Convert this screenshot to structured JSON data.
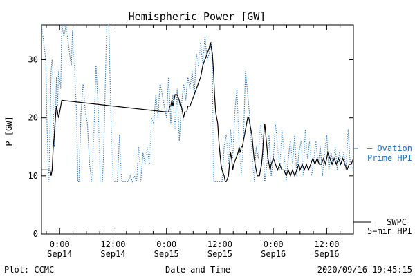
{
  "footer": {
    "left": "Plot: CCMC",
    "right": "2020/09/16 19:45:15"
  },
  "chart_data": {
    "type": "line",
    "title": "Hemispheric Power [GW]",
    "xlabel": "Date and Time",
    "ylabel": "P [GW]",
    "ylim": [
      0,
      36
    ],
    "xlim": [
      -0.17,
      2.75
    ],
    "y_ticks": [
      0,
      10,
      20,
      30
    ],
    "x_ticks": [
      {
        "x": 0.0,
        "top": "0:00",
        "bottom": "Sep14"
      },
      {
        "x": 0.5,
        "top": "12:00",
        "bottom": "Sep14"
      },
      {
        "x": 1.0,
        "top": "0:00",
        "bottom": "Sep15"
      },
      {
        "x": 1.5,
        "top": "12:00",
        "bottom": "Sep15"
      },
      {
        "x": 2.0,
        "top": "0:00",
        "bottom": "Sep16"
      },
      {
        "x": 2.5,
        "top": "12:00",
        "bottom": "Sep16"
      }
    ],
    "grid": false,
    "colors": {
      "swpc": "#000000",
      "ovation": "#1a6fc4"
    },
    "series": [
      {
        "name": "SWPC 5-min HPI",
        "legend_lines": [
          "SWPC",
          "5−min HPI"
        ],
        "style": "solid",
        "points": [
          [
            -0.17,
            11
          ],
          [
            -0.09,
            11
          ],
          [
            -0.08,
            10
          ],
          [
            -0.07,
            11
          ],
          [
            -0.06,
            15
          ],
          [
            -0.05,
            17
          ],
          [
            -0.04,
            20
          ],
          [
            -0.03,
            22
          ],
          [
            -0.02,
            21
          ],
          [
            -0.01,
            20
          ],
          [
            0.0,
            21
          ],
          [
            0.02,
            23
          ],
          [
            1.0,
            21
          ],
          [
            1.02,
            21
          ],
          [
            1.03,
            22
          ],
          [
            1.04,
            22
          ],
          [
            1.05,
            23
          ],
          [
            1.06,
            22
          ],
          [
            1.08,
            24
          ],
          [
            1.1,
            24
          ],
          [
            1.12,
            23
          ],
          [
            1.13,
            22
          ],
          [
            1.14,
            22
          ],
          [
            1.15,
            21
          ],
          [
            1.16,
            20
          ],
          [
            1.17,
            21
          ],
          [
            1.19,
            21
          ],
          [
            1.2,
            22
          ],
          [
            1.22,
            22
          ],
          [
            1.24,
            23
          ],
          [
            1.26,
            24
          ],
          [
            1.28,
            25
          ],
          [
            1.3,
            26
          ],
          [
            1.32,
            27
          ],
          [
            1.34,
            29
          ],
          [
            1.36,
            30
          ],
          [
            1.38,
            31
          ],
          [
            1.4,
            32
          ],
          [
            1.41,
            33
          ],
          [
            1.42,
            32
          ],
          [
            1.43,
            31
          ],
          [
            1.44,
            28
          ],
          [
            1.45,
            24
          ],
          [
            1.46,
            21
          ],
          [
            1.48,
            19
          ],
          [
            1.49,
            16
          ],
          [
            1.5,
            14
          ],
          [
            1.51,
            12
          ],
          [
            1.52,
            11
          ],
          [
            1.54,
            10
          ],
          [
            1.55,
            9
          ],
          [
            1.56,
            9
          ],
          [
            1.58,
            10
          ],
          [
            1.59,
            12
          ],
          [
            1.6,
            14
          ],
          [
            1.61,
            13
          ],
          [
            1.62,
            11
          ],
          [
            1.63,
            12
          ],
          [
            1.65,
            13
          ],
          [
            1.67,
            14
          ],
          [
            1.68,
            15
          ],
          [
            1.69,
            14
          ],
          [
            1.7,
            15
          ],
          [
            1.71,
            15
          ],
          [
            1.72,
            16
          ],
          [
            1.73,
            17
          ],
          [
            1.74,
            18
          ],
          [
            1.75,
            19
          ],
          [
            1.76,
            20
          ],
          [
            1.77,
            20
          ],
          [
            1.78,
            19
          ],
          [
            1.79,
            18
          ],
          [
            1.8,
            17
          ],
          [
            1.81,
            15
          ],
          [
            1.82,
            13
          ],
          [
            1.83,
            12
          ],
          [
            1.84,
            11
          ],
          [
            1.85,
            10
          ],
          [
            1.87,
            10
          ],
          [
            1.88,
            11
          ],
          [
            1.89,
            12
          ],
          [
            1.9,
            14
          ],
          [
            1.91,
            17
          ],
          [
            1.92,
            19
          ],
          [
            1.93,
            17
          ],
          [
            1.94,
            15
          ],
          [
            1.95,
            13
          ],
          [
            1.96,
            12
          ],
          [
            1.97,
            11
          ],
          [
            1.98,
            12
          ],
          [
            2.0,
            13
          ],
          [
            2.02,
            12
          ],
          [
            2.04,
            11
          ],
          [
            2.06,
            12
          ],
          [
            2.08,
            11
          ],
          [
            2.1,
            11
          ],
          [
            2.12,
            10
          ],
          [
            2.14,
            11
          ],
          [
            2.16,
            10
          ],
          [
            2.18,
            11
          ],
          [
            2.2,
            10
          ],
          [
            2.22,
            11
          ],
          [
            2.24,
            12
          ],
          [
            2.25,
            11
          ],
          [
            2.27,
            12
          ],
          [
            2.29,
            11
          ],
          [
            2.31,
            12
          ],
          [
            2.33,
            11
          ],
          [
            2.35,
            12
          ],
          [
            2.37,
            13
          ],
          [
            2.39,
            12
          ],
          [
            2.41,
            13
          ],
          [
            2.43,
            12
          ],
          [
            2.45,
            12
          ],
          [
            2.47,
            13
          ],
          [
            2.49,
            12
          ],
          [
            2.51,
            14
          ],
          [
            2.53,
            13
          ],
          [
            2.55,
            12
          ],
          [
            2.57,
            13
          ],
          [
            2.59,
            12
          ],
          [
            2.61,
            13
          ],
          [
            2.63,
            12
          ],
          [
            2.65,
            13
          ],
          [
            2.67,
            12
          ],
          [
            2.69,
            11
          ],
          [
            2.71,
            12
          ],
          [
            2.73,
            12
          ],
          [
            2.75,
            13
          ]
        ]
      },
      {
        "name": "Ovation Prime HPI",
        "legend_lines": [
          "— Ovation",
          "Prime HPI"
        ],
        "style": "dotted",
        "points": [
          [
            -0.17,
            36
          ],
          [
            -0.15,
            33
          ],
          [
            -0.13,
            30
          ],
          [
            -0.12,
            20
          ],
          [
            -0.11,
            13
          ],
          [
            -0.1,
            9
          ],
          [
            -0.08,
            28
          ],
          [
            -0.07,
            30
          ],
          [
            -0.06,
            22
          ],
          [
            -0.05,
            15
          ],
          [
            -0.04,
            19
          ],
          [
            -0.03,
            27
          ],
          [
            -0.02,
            22
          ],
          [
            -0.01,
            28
          ],
          [
            0.01,
            25
          ],
          [
            0.02,
            36
          ],
          [
            0.04,
            34
          ],
          [
            0.06,
            36
          ],
          [
            0.08,
            33
          ],
          [
            0.1,
            30
          ],
          [
            0.11,
            29
          ],
          [
            0.12,
            35
          ],
          [
            0.14,
            28
          ],
          [
            0.16,
            20
          ],
          [
            0.17,
            9
          ],
          [
            0.18,
            9
          ],
          [
            0.2,
            21
          ],
          [
            0.22,
            26
          ],
          [
            0.24,
            21
          ],
          [
            0.26,
            19
          ],
          [
            0.28,
            12
          ],
          [
            0.3,
            9
          ],
          [
            0.32,
            17
          ],
          [
            0.34,
            29
          ],
          [
            0.36,
            22
          ],
          [
            0.38,
            9
          ],
          [
            0.4,
            9
          ],
          [
            0.41,
            13
          ],
          [
            0.42,
            20
          ],
          [
            0.44,
            36
          ],
          [
            0.46,
            36
          ],
          [
            0.48,
            20
          ],
          [
            0.5,
            9
          ],
          [
            0.52,
            9
          ],
          [
            0.54,
            9
          ],
          [
            0.56,
            17
          ],
          [
            0.58,
            9
          ],
          [
            0.6,
            9
          ],
          [
            0.62,
            9
          ],
          [
            0.64,
            9
          ],
          [
            0.66,
            10
          ],
          [
            0.68,
            9
          ],
          [
            0.7,
            10
          ],
          [
            0.72,
            9
          ],
          [
            0.74,
            15
          ],
          [
            0.76,
            9
          ],
          [
            0.78,
            14
          ],
          [
            0.8,
            12
          ],
          [
            0.82,
            15
          ],
          [
            0.84,
            12
          ],
          [
            0.86,
            20
          ],
          [
            0.88,
            19
          ],
          [
            0.9,
            24
          ],
          [
            0.92,
            20
          ],
          [
            0.94,
            26
          ],
          [
            0.96,
            24
          ],
          [
            0.98,
            22
          ],
          [
            1.0,
            20
          ],
          [
            1.02,
            27
          ],
          [
            1.04,
            19
          ],
          [
            1.06,
            24
          ],
          [
            1.08,
            18
          ],
          [
            1.1,
            25
          ],
          [
            1.12,
            16
          ],
          [
            1.14,
            22
          ],
          [
            1.16,
            26
          ],
          [
            1.18,
            23
          ],
          [
            1.2,
            27
          ],
          [
            1.22,
            25
          ],
          [
            1.24,
            28
          ],
          [
            1.26,
            24
          ],
          [
            1.28,
            31
          ],
          [
            1.3,
            29
          ],
          [
            1.32,
            33
          ],
          [
            1.34,
            29
          ],
          [
            1.36,
            34
          ],
          [
            1.38,
            30
          ],
          [
            1.4,
            31
          ],
          [
            1.42,
            33
          ],
          [
            1.43,
            28
          ],
          [
            1.44,
            9
          ],
          [
            1.46,
            9
          ],
          [
            1.48,
            9
          ],
          [
            1.5,
            9
          ],
          [
            1.52,
            9
          ],
          [
            1.54,
            15
          ],
          [
            1.56,
            17
          ],
          [
            1.58,
            12
          ],
          [
            1.6,
            18
          ],
          [
            1.62,
            13
          ],
          [
            1.64,
            21
          ],
          [
            1.66,
            25
          ],
          [
            1.68,
            15
          ],
          [
            1.7,
            10
          ],
          [
            1.72,
            16
          ],
          [
            1.74,
            28
          ],
          [
            1.76,
            24
          ],
          [
            1.78,
            20
          ],
          [
            1.8,
            14
          ],
          [
            1.82,
            9
          ],
          [
            1.84,
            15
          ],
          [
            1.86,
            13
          ],
          [
            1.88,
            19
          ],
          [
            1.9,
            16
          ],
          [
            1.92,
            9
          ],
          [
            1.94,
            12
          ],
          [
            1.96,
            17
          ],
          [
            1.98,
            10
          ],
          [
            2.0,
            13
          ],
          [
            2.02,
            19
          ],
          [
            2.04,
            15
          ],
          [
            2.06,
            11
          ],
          [
            2.08,
            18
          ],
          [
            2.1,
            14
          ],
          [
            2.12,
            9
          ],
          [
            2.14,
            13
          ],
          [
            2.16,
            16
          ],
          [
            2.18,
            12
          ],
          [
            2.2,
            17
          ],
          [
            2.22,
            10
          ],
          [
            2.24,
            14
          ],
          [
            2.26,
            16
          ],
          [
            2.28,
            10
          ],
          [
            2.3,
            18
          ],
          [
            2.32,
            13
          ],
          [
            2.34,
            16
          ],
          [
            2.36,
            10
          ],
          [
            2.38,
            13
          ],
          [
            2.4,
            16
          ],
          [
            2.42,
            12
          ],
          [
            2.44,
            15
          ],
          [
            2.46,
            10
          ],
          [
            2.48,
            14
          ],
          [
            2.5,
            17
          ],
          [
            2.52,
            11
          ],
          [
            2.54,
            14
          ],
          [
            2.56,
            12
          ],
          [
            2.58,
            15
          ],
          [
            2.6,
            11
          ],
          [
            2.62,
            14
          ],
          [
            2.64,
            12
          ],
          [
            2.66,
            14
          ],
          [
            2.68,
            11
          ],
          [
            2.7,
            18
          ],
          [
            2.72,
            12
          ],
          [
            2.75,
            11
          ]
        ]
      }
    ]
  }
}
